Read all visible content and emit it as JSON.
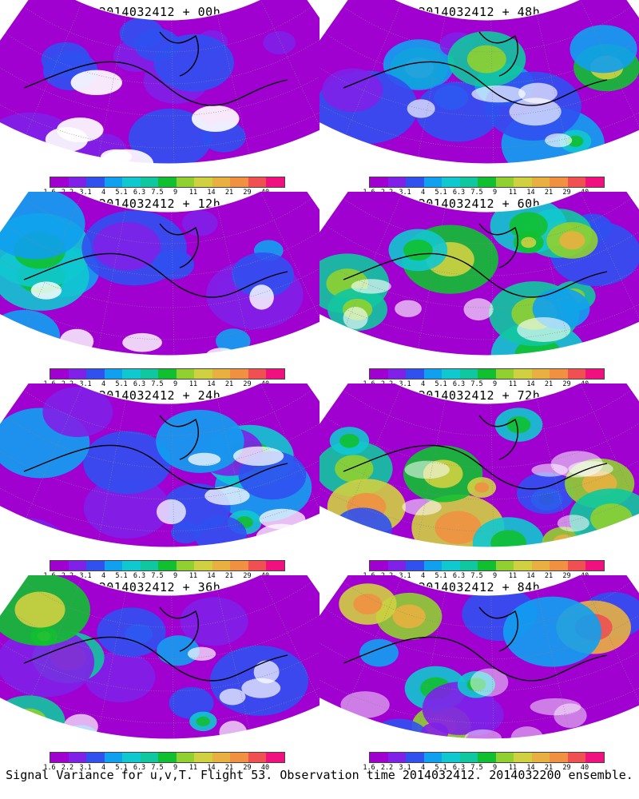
{
  "panels": [
    {
      "title": "2014032412 + 00h",
      "intensity": 0.15
    },
    {
      "title": "2014032412 + 48h",
      "intensity": 0.55
    },
    {
      "title": "2014032412 + 12h",
      "intensity": 0.3
    },
    {
      "title": "2014032412 + 60h",
      "intensity": 0.62
    },
    {
      "title": "2014032412 + 24h",
      "intensity": 0.42
    },
    {
      "title": "2014032412 + 72h",
      "intensity": 0.75
    },
    {
      "title": "2014032412 + 36h",
      "intensity": 0.5
    },
    {
      "title": "2014032412 + 84h",
      "intensity": 0.85
    }
  ],
  "colorbar": {
    "labels": [
      "1.6",
      "2.2",
      "3.1",
      "4",
      "5.1",
      "6.3",
      "7.5",
      "9",
      "11",
      "14",
      "21",
      "29",
      "40"
    ],
    "colors": [
      "#a000d0",
      "#8020e8",
      "#3050f0",
      "#10a0f0",
      "#10c8d0",
      "#10c8a0",
      "#10c030",
      "#90d030",
      "#d0d040",
      "#e8b040",
      "#f09040",
      "#f05050",
      "#f01080"
    ]
  },
  "footer": "Signal Variance for u,v,T. Flight 53. Observation time 2014032412. 2014032200 ensemble."
}
